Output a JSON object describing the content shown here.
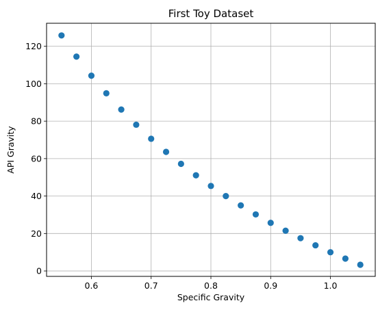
{
  "chart_data": {
    "type": "scatter",
    "title": "First Toy Dataset",
    "xlabel": "Specific Gravity",
    "ylabel": "API Gravity",
    "xlim": [
      0.525,
      1.075
    ],
    "ylim": [
      -2.9,
      132.3
    ],
    "xticks": [
      0.6,
      0.7,
      0.8,
      0.9,
      1.0
    ],
    "xtick_labels": [
      "0.6",
      "0.7",
      "0.8",
      "0.9",
      "1.0"
    ],
    "yticks": [
      0,
      20,
      40,
      60,
      80,
      100,
      120
    ],
    "ytick_labels": [
      "0",
      "20",
      "40",
      "60",
      "80",
      "100",
      "120"
    ],
    "grid": true,
    "marker_color": "#1f77b4",
    "series": [
      {
        "x": [
          0.55,
          0.575,
          0.6,
          0.625,
          0.65,
          0.675,
          0.7,
          0.725,
          0.75,
          0.775,
          0.8,
          0.825,
          0.85,
          0.875,
          0.9,
          0.925,
          0.95,
          0.975,
          1.0,
          1.025,
          1.05
        ],
        "y": [
          125.8,
          114.5,
          104.3,
          94.9,
          86.2,
          78.1,
          70.6,
          63.6,
          57.2,
          51.1,
          45.4,
          40.0,
          35.0,
          30.2,
          25.7,
          21.5,
          17.5,
          13.7,
          10.0,
          6.6,
          3.3
        ]
      }
    ]
  }
}
